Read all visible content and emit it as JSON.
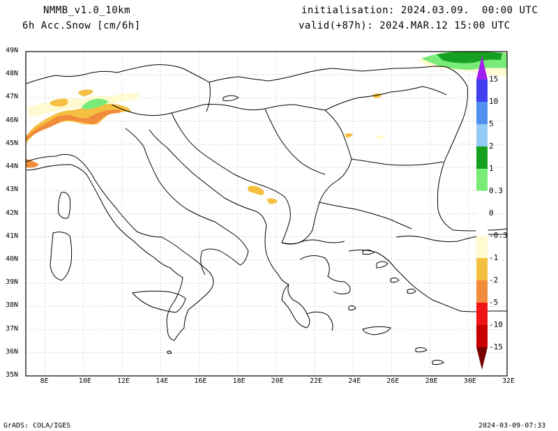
{
  "header": {
    "model": "NMMB_v1.0_10km",
    "field": "6h Acc.Snow [cm/6h]",
    "init": "initialisation: 2024.03.09.  00:00 UTC",
    "valid": "valid(+87h): 2024.MAR.12 15:00 UTC"
  },
  "footer": {
    "left": "GrADS: COLA/IGES",
    "right": "2024-03-09-07:33"
  },
  "axes": {
    "lat_labels": [
      "49N",
      "48N",
      "47N",
      "46N",
      "45N",
      "44N",
      "43N",
      "42N",
      "41N",
      "40N",
      "39N",
      "38N",
      "37N",
      "36N",
      "35N"
    ],
    "lon_labels": [
      "8E",
      "10E",
      "12E",
      "14E",
      "16E",
      "18E",
      "20E",
      "22E",
      "24E",
      "26E",
      "28E",
      "30E",
      "32E"
    ]
  },
  "colorbar": {
    "labels": [
      "15",
      "10",
      "5",
      "2",
      "1",
      "0.3",
      "0",
      "-0.3",
      "-1",
      "-2",
      "-5",
      "-10",
      "-15"
    ],
    "colors": {
      "c15": "#a020f0",
      "c10": "#4040f0",
      "c5": "#4f8ff0",
      "c2": "#96cbf5",
      "c1": "#15a020",
      "c03": "#78eb78",
      "c0": "#ffffff",
      "cm03": "#fffad0",
      "cm1": "#f5c040",
      "cm2": "#f08c3c",
      "cm5": "#f01414",
      "cm10": "#c80000",
      "cm15": "#780000"
    }
  },
  "map_colors": {
    "border": "#000000",
    "grid": "#b4b4b4"
  }
}
